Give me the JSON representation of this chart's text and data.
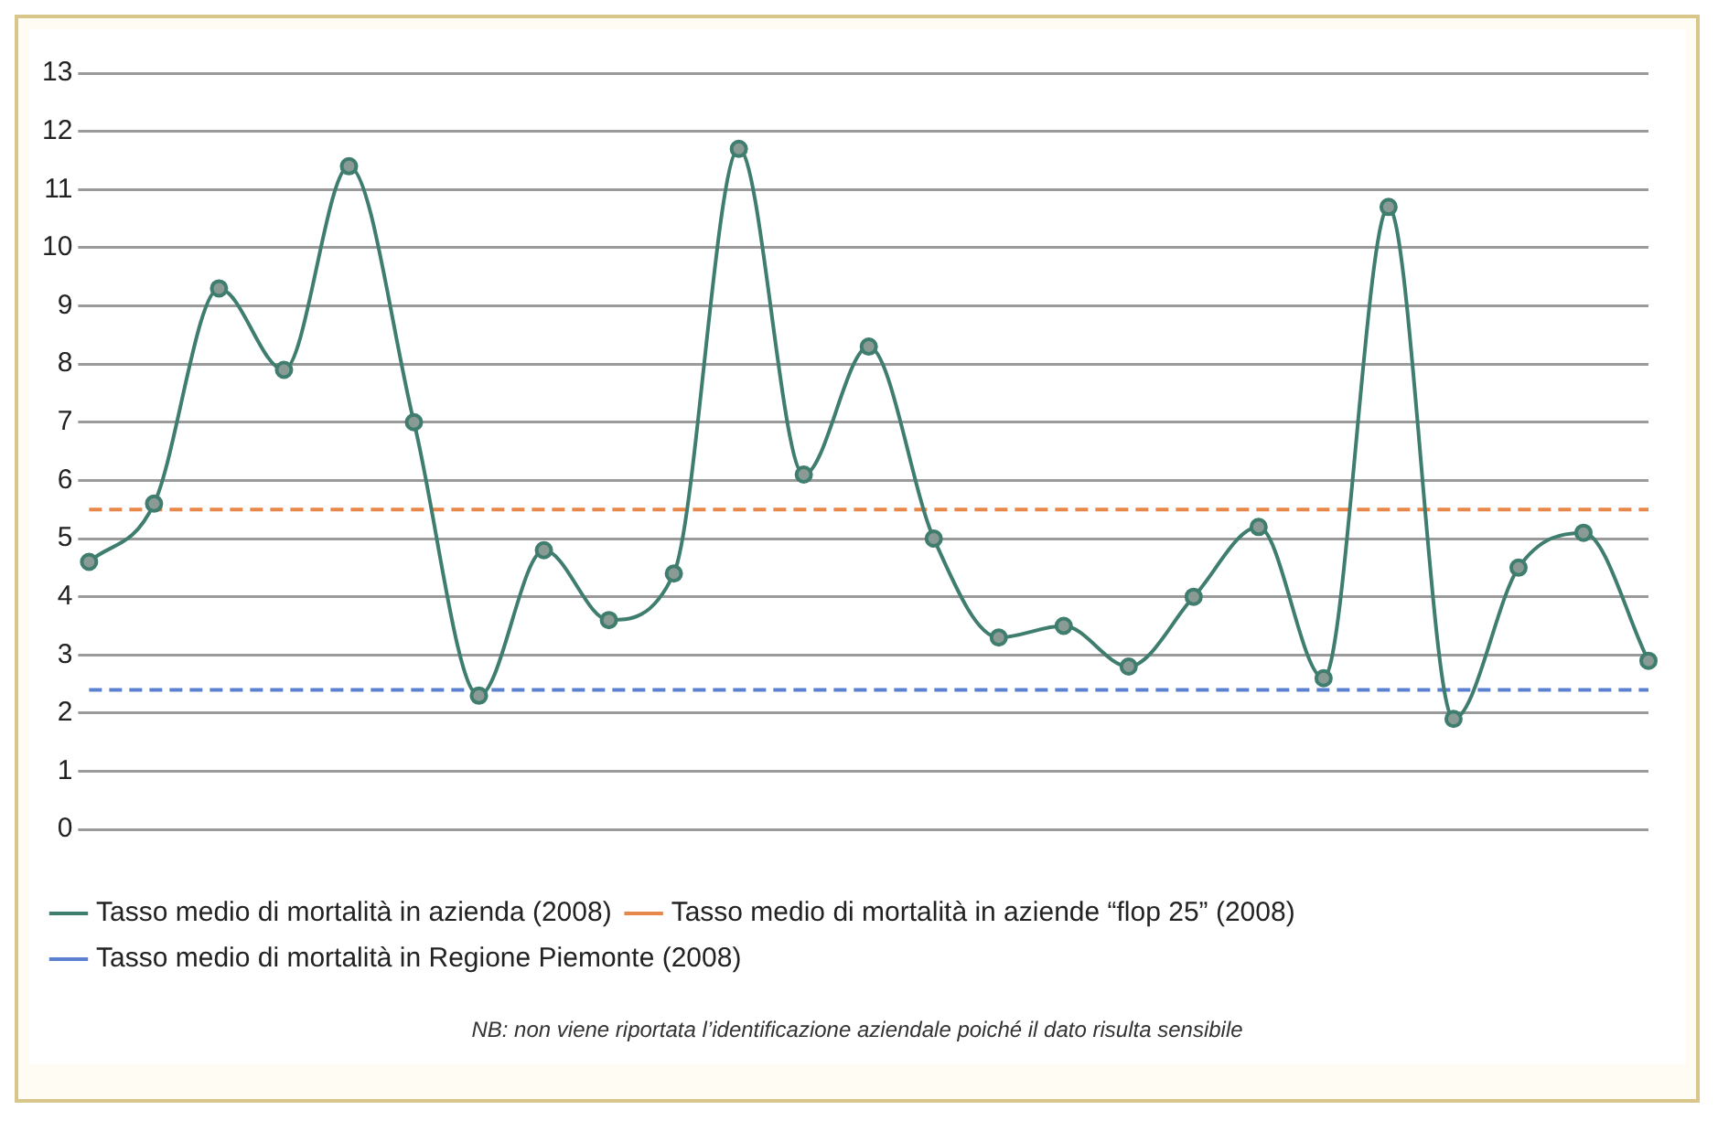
{
  "chart_data": {
    "type": "line",
    "categories": [
      null,
      null,
      null,
      null,
      null,
      null,
      null,
      null,
      null,
      null,
      null,
      null,
      null,
      null,
      null,
      null,
      null,
      null,
      null,
      null,
      null,
      null,
      null,
      null,
      null
    ],
    "series": [
      {
        "name": "Tasso medio di mortalità in azienda (2008)",
        "color": "#3f7d6e",
        "marker": "circle",
        "line_style": "solid",
        "values": [
          4.6,
          5.6,
          9.3,
          7.9,
          11.4,
          7.0,
          2.3,
          4.8,
          3.6,
          4.4,
          11.7,
          6.1,
          8.3,
          5.0,
          3.3,
          3.5,
          2.8,
          4.0,
          5.2,
          2.6,
          10.7,
          1.9,
          4.5,
          5.1,
          2.9
        ]
      },
      {
        "name": "Tasso medio di mortalità in aziende “flop 25” (2008)",
        "color": "#e8874a",
        "marker": "none",
        "line_style": "dashed",
        "values": [
          5.5,
          5.5,
          5.5,
          5.5,
          5.5,
          5.5,
          5.5,
          5.5,
          5.5,
          5.5,
          5.5,
          5.5,
          5.5,
          5.5,
          5.5,
          5.5,
          5.5,
          5.5,
          5.5,
          5.5,
          5.5,
          5.5,
          5.5,
          5.5,
          5.5
        ]
      },
      {
        "name": "Tasso medio di mortalità in Regione Piemonte (2008)",
        "color": "#5b80d0",
        "marker": "none",
        "line_style": "dashed",
        "values": [
          2.4,
          2.4,
          2.4,
          2.4,
          2.4,
          2.4,
          2.4,
          2.4,
          2.4,
          2.4,
          2.4,
          2.4,
          2.4,
          2.4,
          2.4,
          2.4,
          2.4,
          2.4,
          2.4,
          2.4,
          2.4,
          2.4,
          2.4,
          2.4,
          2.4
        ]
      }
    ],
    "ylim": [
      0,
      13
    ],
    "yticks": [
      0,
      1,
      2,
      3,
      4,
      5,
      6,
      7,
      8,
      9,
      10,
      11,
      12,
      13
    ],
    "grid": "y",
    "legend": "bottom",
    "annotations": [
      "NB: non viene riportata l’identificazione aziendale poiché il dato risulta sensibile"
    ]
  }
}
